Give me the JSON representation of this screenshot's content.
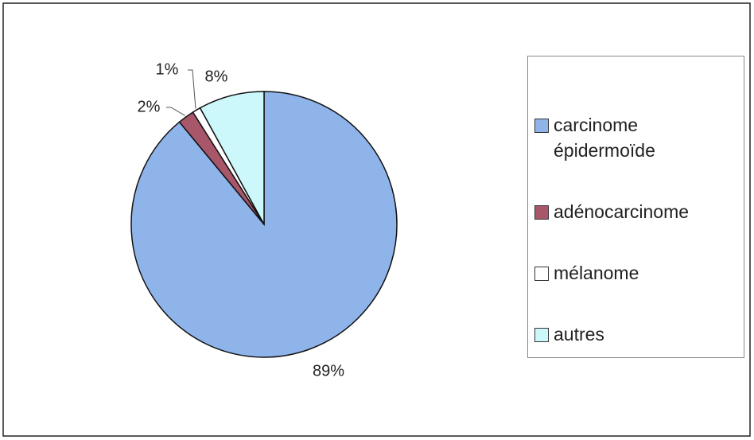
{
  "chart_data": {
    "type": "pie",
    "categories": [
      "carcinome épidermoïde",
      "adénocarcinome",
      "mélanome",
      "autres"
    ],
    "values": [
      89,
      2,
      1,
      8
    ],
    "value_labels": [
      "89%",
      "2%",
      "1%",
      "8%"
    ],
    "colors": [
      "#8fb4ea",
      "#a8566a",
      "#ffffff",
      "#ccf7fb"
    ],
    "legend": "right"
  }
}
